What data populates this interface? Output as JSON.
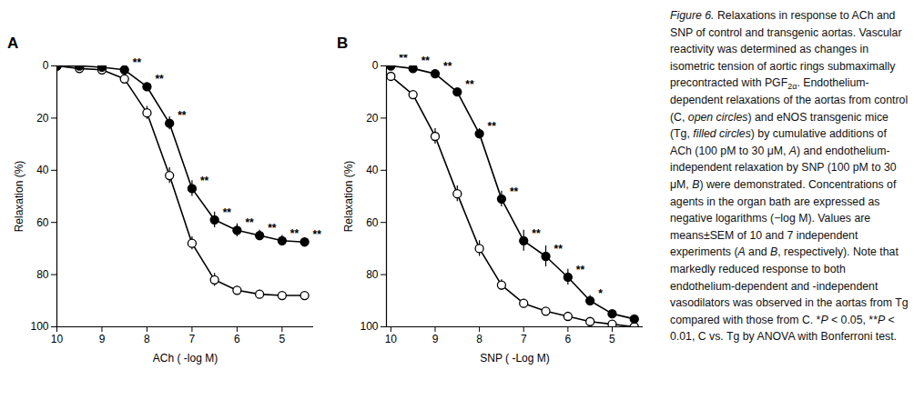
{
  "chart_data": [
    {
      "type": "line",
      "title": "A",
      "x_label": "ACh ( -log M)",
      "y_label": "Relaxation (%)",
      "x": [
        10,
        9.5,
        9,
        8.5,
        8,
        7.5,
        7,
        6.5,
        6,
        5.5,
        5,
        4.5
      ],
      "xlim": [
        10,
        4.3
      ],
      "xticks": [
        10,
        9,
        8,
        7,
        6,
        5
      ],
      "ylim": [
        100,
        0
      ],
      "yticks": [
        0,
        20,
        40,
        60,
        80,
        100
      ],
      "series": [
        {
          "name": "C",
          "color": "#000000",
          "marker": "open_circle",
          "values": [
            0,
            1,
            1.5,
            5,
            18,
            42,
            68,
            82,
            86,
            87.5,
            88,
            88
          ],
          "errors": [
            0.5,
            0.5,
            0.8,
            1,
            2.5,
            3,
            2.5,
            2.5,
            1.5,
            1.5,
            1.5,
            1
          ],
          "significance": [
            null,
            null,
            null,
            null,
            null,
            null,
            null,
            null,
            null,
            null,
            null,
            null
          ]
        },
        {
          "name": "Tg",
          "color": "#000000",
          "marker": "filled_circle",
          "values": [
            0,
            0,
            0.5,
            1.5,
            8,
            22,
            47,
            59,
            63,
            65,
            67,
            67.5
          ],
          "errors": [
            0.5,
            0.5,
            0.5,
            0.8,
            1.5,
            2.5,
            3,
            3,
            2.5,
            2,
            2,
            1.5
          ],
          "significance": [
            null,
            null,
            null,
            "**",
            "**",
            "**",
            "**",
            "**",
            "**",
            "**",
            "**",
            "**"
          ]
        }
      ]
    },
    {
      "type": "line",
      "title": "B",
      "x_label": "SNP ( -Log M)",
      "y_label": "Relaxation (%)",
      "x": [
        10,
        9.5,
        9,
        8.5,
        8,
        7.5,
        7,
        6.5,
        6,
        5.5,
        5,
        4.5
      ],
      "xlim": [
        10.1,
        4.3
      ],
      "xticks": [
        10,
        9,
        8,
        7,
        6,
        5
      ],
      "ylim": [
        100,
        0
      ],
      "yticks": [
        0,
        20,
        40,
        60,
        80,
        100
      ],
      "series": [
        {
          "name": "C",
          "color": "#000000",
          "marker": "open_circle",
          "values": [
            4,
            11,
            27,
            49,
            70,
            84,
            91,
            94,
            96,
            98,
            99,
            100
          ],
          "errors": [
            1,
            1.5,
            3,
            3,
            3,
            2,
            1.5,
            1,
            1,
            0.8,
            0.5,
            0.5
          ],
          "significance": [
            null,
            null,
            null,
            null,
            null,
            null,
            null,
            null,
            null,
            null,
            null,
            null
          ]
        },
        {
          "name": "Tg",
          "color": "#000000",
          "marker": "filled_circle",
          "values": [
            0,
            1,
            3,
            10,
            26,
            51,
            67,
            73,
            81,
            90,
            95,
            97
          ],
          "errors": [
            0.5,
            0.5,
            1,
            1,
            2,
            3,
            4,
            4,
            3,
            2,
            1,
            1
          ],
          "significance": [
            "**",
            "**",
            "**",
            "**",
            "**",
            "**",
            "**",
            "**",
            "**",
            "*",
            null,
            null
          ]
        }
      ]
    }
  ],
  "caption": [
    {
      "text": "Figure 6.",
      "style": "italic"
    },
    {
      "text": "  Relaxations in response to ACh and SNP of control and transgenic aortas. Vascular reactivity was determined as changes in isometric tension of aortic rings submaximally precontracted with PGF"
    },
    {
      "text": "2α",
      "style": "sub"
    },
    {
      "text": ". Endothelium-dependent relaxations of the aortas from control (C, "
    },
    {
      "text": "open circles",
      "style": "italic"
    },
    {
      "text": ") and eNOS transgenic mice (Tg, "
    },
    {
      "text": "filled circles",
      "style": "italic"
    },
    {
      "text": ") by cumulative additions of ACh (100 pM to 30 μM, "
    },
    {
      "text": "A",
      "style": "italic"
    },
    {
      "text": ") and endothelium-independent relaxation by SNP (100 pM to 30 μM, "
    },
    {
      "text": "B",
      "style": "italic"
    },
    {
      "text": ") were demonstrated. Concentrations of agents in the organ bath are expressed as negative logarithms (−log M). Values are means±SEM of 10 and 7 independent experiments ("
    },
    {
      "text": "A",
      "style": "italic"
    },
    {
      "text": " and "
    },
    {
      "text": "B",
      "style": "italic"
    },
    {
      "text": ", respectively). Note that markedly reduced response to both endothelium-dependent and -independent vasodilators was observed in the aortas from Tg compared with those from C. *"
    },
    {
      "text": "P",
      "style": "italic"
    },
    {
      "text": " < 0.05, **"
    },
    {
      "text": "P",
      "style": "italic"
    },
    {
      "text": " < 0.01, C vs. Tg by ANOVA with Bonferroni test."
    }
  ]
}
